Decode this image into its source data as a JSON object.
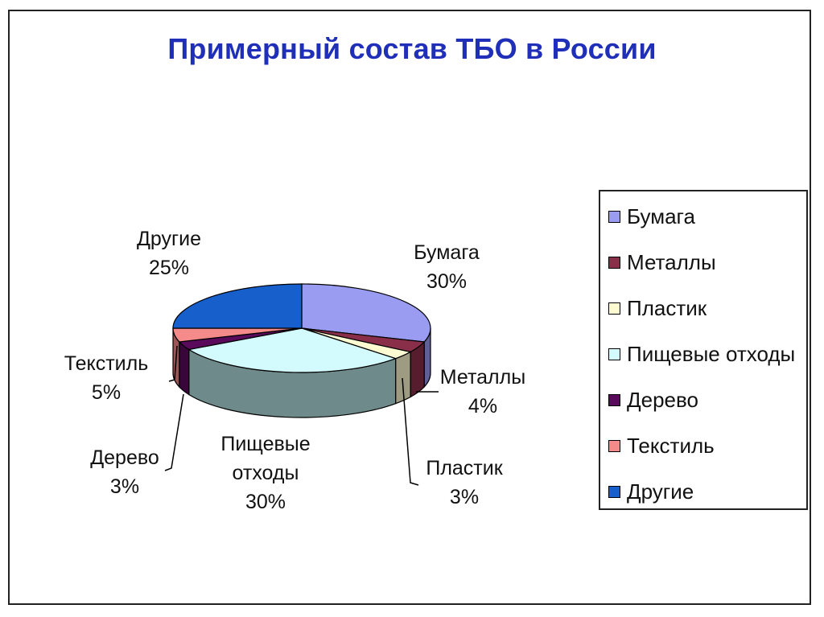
{
  "chart_data": {
    "type": "pie",
    "title": "Примерный состав ТБО в России",
    "three_d": true,
    "legend_position": "right",
    "slices": [
      {
        "name": "Бумага",
        "value": 30,
        "label": "30%",
        "color": "#9a9cf2"
      },
      {
        "name": "Металлы",
        "value": 4,
        "label": "4%",
        "color": "#8a2f4a"
      },
      {
        "name": "Пластик",
        "value": 3,
        "label": "3%",
        "color": "#fdfbd2"
      },
      {
        "name": "Пищевые отходы",
        "value": 30,
        "label": "30%",
        "color": "#d3fbfd"
      },
      {
        "name": "Дерево",
        "value": 3,
        "label": "3%",
        "color": "#5a0a5a"
      },
      {
        "name": "Текстиль",
        "value": 5,
        "label": "5%",
        "color": "#f58a8a"
      },
      {
        "name": "Другие",
        "value": 25,
        "label": "25%",
        "color": "#1760cc"
      }
    ],
    "slice_label_lines": [
      [
        "Бумага",
        "30%"
      ],
      [
        "Металлы",
        "4%"
      ],
      [
        "Пластик",
        "3%"
      ],
      [
        "Пищевые",
        "отходы",
        "30%"
      ],
      [
        "Дерево",
        "3%"
      ],
      [
        "Текстиль",
        "5%"
      ],
      [
        "Другие",
        "25%"
      ]
    ]
  }
}
